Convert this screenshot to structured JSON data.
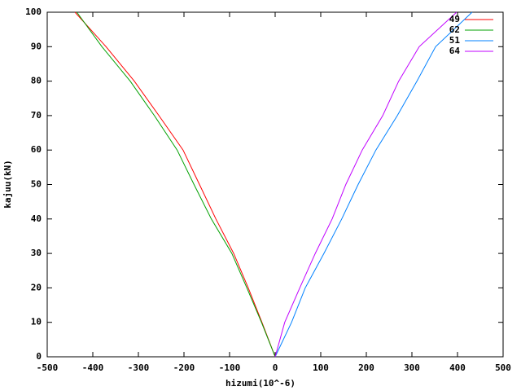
{
  "chart_data": {
    "type": "line",
    "xlabel": "hizumi(10^-6)",
    "ylabel": "kajuu(kN)",
    "xlim": [
      -500,
      500
    ],
    "xticks": [
      -500,
      -400,
      -300,
      -200,
      -100,
      0,
      100,
      200,
      300,
      400,
      500
    ],
    "ylim": [
      0,
      100
    ],
    "yticks": [
      0,
      10,
      20,
      30,
      40,
      50,
      60,
      70,
      80,
      90,
      100
    ],
    "grid": false,
    "legend": "top-right",
    "series": [
      {
        "name": "49",
        "color": "#ff0000",
        "x": [
          0,
          -29,
          -59,
          -91,
          -130,
          -166,
          -202,
          -255,
          -309,
          -371,
          -439
        ],
        "values": [
          0,
          10,
          20,
          30,
          40,
          50,
          60,
          70,
          80,
          90,
          100
        ]
      },
      {
        "name": "62",
        "color": "#00a000",
        "x": [
          0,
          -30,
          -62,
          -95,
          -140,
          -178,
          -215,
          -265,
          -318,
          -380,
          -435
        ],
        "values": [
          0,
          10,
          20,
          30,
          40,
          50,
          60,
          70,
          80,
          90,
          100
        ]
      },
      {
        "name": "51",
        "color": "#0080ff",
        "x": [
          0,
          36,
          66,
          107,
          146,
          182,
          221,
          268,
          311,
          352,
          432
        ],
        "values": [
          0,
          10,
          20,
          30,
          40,
          50,
          60,
          70,
          80,
          90,
          100
        ]
      },
      {
        "name": "64",
        "color": "#c000ff",
        "x": [
          0,
          21,
          54,
          88,
          125,
          155,
          191,
          236,
          271,
          316,
          398
        ],
        "values": [
          0,
          10,
          20,
          30,
          40,
          50,
          60,
          70,
          80,
          90,
          100
        ]
      }
    ]
  }
}
